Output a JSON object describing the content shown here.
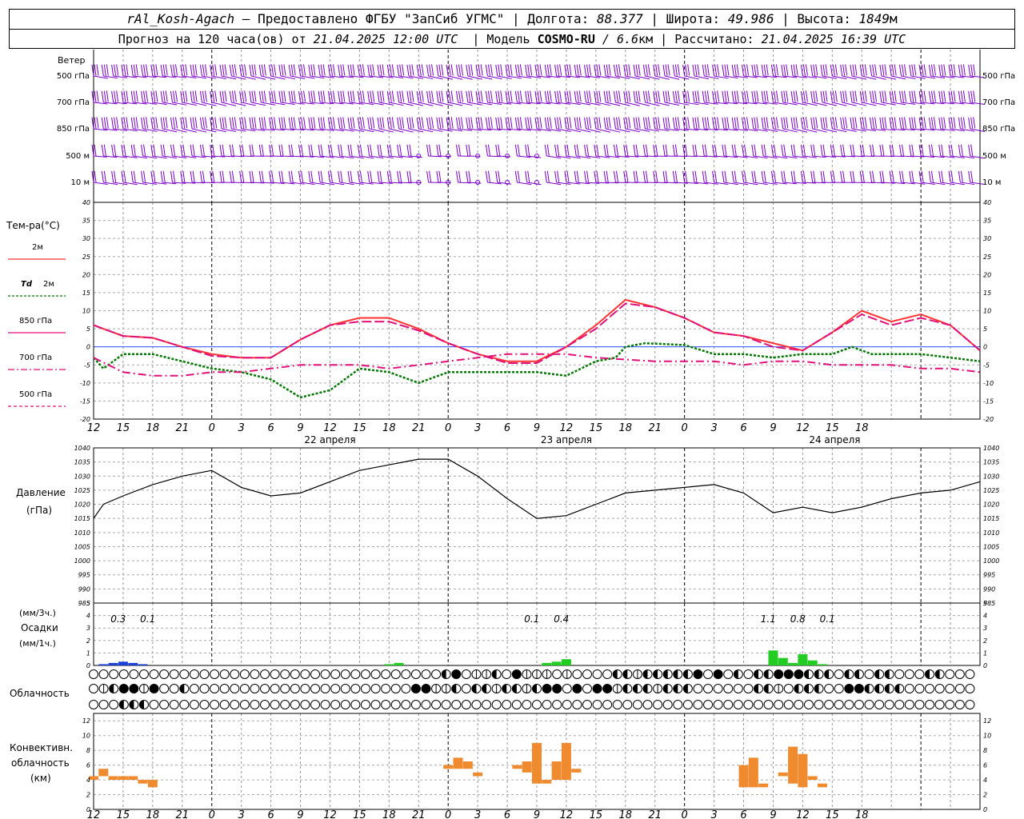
{
  "header": {
    "station": "rAl_Kosh-Agach",
    "dash": " – ",
    "provider": "Предоставлено ФГБУ \"ЗапСиб УГМС\"",
    "lon_label": "Долгота:",
    "lon": "88.377",
    "lat_label": "Широта:",
    "lat": "49.986",
    "alt_label": "Высота:",
    "alt": "1849",
    "alt_unit": "м",
    "forecast_label": "Прогноз на 120 часа(ов) от",
    "forecast_time": "21.04.2025 12:00 UTC",
    "model_label": "Модель",
    "model": "COSMO-RU",
    "model_res": "/ 6.6",
    "model_res_unit": "км",
    "calc_label": "Рассчитано:",
    "calc_time": "21.04.2025 16:39 UTC"
  },
  "wind_panel": {
    "title": "Ветер",
    "levels": [
      "500 гПа",
      "700 гПа",
      "850 гПа",
      "500 м",
      "10 м"
    ],
    "colors": {
      "barb": "#7a00c8"
    }
  },
  "temp_panel": {
    "title": "Тем-ра(°C)",
    "legend": [
      {
        "label": "2м",
        "color": "#ff3333",
        "dash": ""
      },
      {
        "label_it": "Td",
        "label": "2м",
        "color": "#007700",
        "dash": "3,2"
      },
      {
        "label": "850 гПа",
        "color": "#e0107a",
        "dash": ""
      },
      {
        "label": "700 гПа",
        "color": "#e0107a",
        "dash": "8,3,2,3"
      },
      {
        "label": "500 гПа",
        "color": "#e0107a",
        "dash": "4,3"
      }
    ]
  },
  "pressure_panel": {
    "title": "Давление",
    "unit": "(гПа)"
  },
  "precip_panel": {
    "unit3": "(мм/3ч.)",
    "title": "Осадки",
    "unit1": "(мм/1ч.)",
    "annotations": [
      {
        "hour": 2.5,
        "text": "0.3"
      },
      {
        "hour": 5.5,
        "text": "0.1"
      },
      {
        "hour": 44.5,
        "text": "0.1"
      },
      {
        "hour": 47.5,
        "text": "0.4"
      },
      {
        "hour": 68.5,
        "text": "1.1"
      },
      {
        "hour": 71.5,
        "text": "0.8"
      },
      {
        "hour": 74.5,
        "text": "0.1"
      }
    ]
  },
  "cloud_panel": {
    "title": "Облачность"
  },
  "conv_panel": {
    "title1": "Конвективн.",
    "title2": "облачность",
    "unit": "(км)"
  },
  "axis": {
    "hour_labels": [
      "12",
      "15",
      "18",
      "21",
      "0",
      "3",
      "6",
      "9",
      "12",
      "15",
      "18",
      "21",
      "0",
      "3",
      "6",
      "9",
      "12",
      "15",
      "18",
      "21",
      "0",
      "3",
      "6",
      "9",
      "12",
      "15",
      "18"
    ],
    "day_labels": [
      {
        "hour": 24,
        "text": "22 апреля"
      },
      {
        "hour": 48,
        "text": "23 апреля"
      },
      {
        "hour": 72,
        "text": "24 апреля"
      }
    ],
    "temp_ticks": [
      "40",
      "35",
      "30",
      "25",
      "20",
      "15",
      "10",
      "5",
      "0",
      "-5",
      "-10",
      "-15",
      "-20"
    ],
    "pres_ticks": [
      "1040",
      "1035",
      "1030",
      "1025",
      "1020",
      "1015",
      "1010",
      "1005",
      "1000",
      "995",
      "990",
      "985"
    ],
    "precip_ticks": [
      "5",
      "4",
      "3",
      "2",
      "1",
      "0"
    ],
    "conv_ticks": [
      "12",
      "10",
      "8",
      "6",
      "4",
      "2",
      "0"
    ]
  },
  "chart_data": {
    "type": "line",
    "x_unit": "hours from 21.04.2025 12:00 UTC",
    "temp_ylim": [
      -20,
      40
    ],
    "pres_ylim": [
      985,
      1040
    ],
    "precip_ylim": [
      0,
      5
    ],
    "conv_ylim": [
      0,
      13
    ],
    "series": [
      {
        "name": "2м",
        "color": "#ff3333",
        "x": [
          0,
          3,
          6,
          9,
          12,
          15,
          18,
          21,
          24,
          27,
          30,
          33,
          36,
          39,
          42,
          45,
          48,
          51,
          54,
          57,
          60,
          63,
          66,
          69,
          72,
          75,
          78,
          81,
          84,
          87,
          90
        ],
        "values": [
          6,
          3,
          2.5,
          0,
          -2,
          -3,
          -3,
          2,
          6,
          8,
          8,
          5,
          1,
          -2,
          -4,
          -4,
          0,
          6,
          13,
          11,
          8,
          4,
          3,
          1,
          -1,
          4,
          10,
          7,
          9,
          6,
          -1
        ]
      },
      {
        "name": "Td 2м",
        "color": "#007700",
        "x": [
          0,
          1,
          3,
          6,
          9,
          12,
          15,
          18,
          21,
          24,
          27,
          30,
          33,
          36,
          39,
          42,
          45,
          48,
          51,
          53,
          54,
          56,
          60,
          63,
          66,
          69,
          72,
          75,
          77,
          79,
          81,
          84,
          90
        ],
        "values": [
          -3,
          -6,
          -2,
          -2,
          -4,
          -6,
          -7,
          -9,
          -14,
          -12,
          -6,
          -7,
          -10,
          -7,
          -7,
          -7,
          -7,
          -8,
          -4,
          -3,
          0,
          1,
          0.5,
          -2,
          -2,
          -3,
          -2,
          -2,
          0,
          -2,
          -2,
          -2,
          -4
        ]
      },
      {
        "name": "850 гПа",
        "color": "#e0107a",
        "x": [
          0,
          3,
          6,
          9,
          12,
          15,
          18,
          21,
          24,
          27,
          30,
          33,
          36,
          39,
          42,
          45,
          48,
          51,
          54,
          57,
          60,
          63,
          66,
          69,
          72,
          75,
          78,
          81,
          84,
          87,
          90
        ],
        "values": [
          6,
          3,
          2.5,
          0,
          -2.5,
          -3,
          -3,
          2,
          6,
          7,
          7,
          4.5,
          1,
          -2,
          -4.5,
          -4.5,
          0,
          5,
          12,
          11,
          8,
          4,
          3,
          0,
          -1,
          4,
          9,
          6,
          8,
          6,
          -1
        ]
      },
      {
        "name": "700 гПа",
        "color": "#e0107a",
        "x": [
          0,
          3,
          6,
          9,
          12,
          15,
          18,
          21,
          24,
          27,
          30,
          33,
          36,
          39,
          42,
          45,
          48,
          51,
          54,
          57,
          60,
          63,
          66,
          69,
          72,
          75,
          78,
          81,
          84,
          87,
          90
        ],
        "values": [
          -3,
          -7,
          -8,
          -8,
          -7,
          -7,
          -6,
          -5,
          -5,
          -5,
          -6,
          -5,
          -4,
          -3,
          -2,
          -2,
          -2,
          -3,
          -3.5,
          -4,
          -4,
          -4,
          -5,
          -4,
          -4,
          -5,
          -5,
          -5,
          -6,
          -6,
          -7
        ]
      },
      {
        "name": "Давление",
        "color": "#000000",
        "x": [
          0,
          1,
          3,
          6,
          9,
          12,
          15,
          18,
          21,
          24,
          27,
          30,
          33,
          36,
          39,
          42,
          45,
          48,
          51,
          54,
          57,
          60,
          63,
          66,
          69,
          72,
          75,
          78,
          81,
          84,
          87,
          90
        ],
        "values": [
          1015,
          1020,
          1023,
          1027,
          1030,
          1032,
          1026,
          1023,
          1024,
          1028,
          1032,
          1034,
          1036,
          1036,
          1030,
          1022,
          1015,
          1016,
          1020,
          1024,
          1025,
          1026,
          1027,
          1024,
          1017,
          1019,
          1017,
          1019,
          1022,
          1024,
          1025,
          1028
        ]
      }
    ],
    "precip_hours": [
      1,
      2,
      3,
      4,
      5,
      30,
      31,
      46,
      47,
      48,
      69,
      70,
      71,
      72,
      73,
      74
    ],
    "precip_mm": [
      0.1,
      0.2,
      0.3,
      0.2,
      0.1,
      0.1,
      0.2,
      0.2,
      0.3,
      0.5,
      1.2,
      0.6,
      0.2,
      0.9,
      0.4,
      0.1
    ],
    "precip_colors": [
      "#1a3fd6",
      "#1a3fd6",
      "#1a3fd6",
      "#1a3fd6",
      "#1a3fd6",
      "#22cc22",
      "#22cc22",
      "#22cc22",
      "#22cc22",
      "#22cc22",
      "#22cc22",
      "#22cc22",
      "#22cc22",
      "#22cc22",
      "#22cc22",
      "#22cc22"
    ],
    "cloud_high": "0000000000000000000000000000000000023011203111010000221222223030202233322202202200022000",
    "cloud_mid": "0123313002000000000000000000000033112022122123303033122212220000002210222003322220000000",
    "cloud_low": "0002220000000000000000000000000000000000000000000000000000000000000000000000000000000000",
    "conv_bars": [
      {
        "x": 0,
        "top": 4.5,
        "bottom": 4
      },
      {
        "x": 1,
        "top": 5.5,
        "bottom": 4.5
      },
      {
        "x": 2,
        "top": 4.5,
        "bottom": 4
      },
      {
        "x": 3,
        "top": 4.5,
        "bottom": 4
      },
      {
        "x": 4,
        "top": 4.5,
        "bottom": 4
      },
      {
        "x": 5,
        "top": 4,
        "bottom": 3.5
      },
      {
        "x": 6,
        "top": 4,
        "bottom": 3
      },
      {
        "x": 36,
        "top": 6,
        "bottom": 5.5
      },
      {
        "x": 37,
        "top": 7,
        "bottom": 5.5
      },
      {
        "x": 38,
        "top": 6.5,
        "bottom": 5.5
      },
      {
        "x": 39,
        "top": 5,
        "bottom": 4.5
      },
      {
        "x": 43,
        "top": 6,
        "bottom": 5.5
      },
      {
        "x": 44,
        "top": 6.5,
        "bottom": 5
      },
      {
        "x": 45,
        "top": 9,
        "bottom": 3.5
      },
      {
        "x": 46,
        "top": 4,
        "bottom": 3.5
      },
      {
        "x": 47,
        "top": 6.5,
        "bottom": 4
      },
      {
        "x": 48,
        "top": 9,
        "bottom": 4
      },
      {
        "x": 49,
        "top": 5.5,
        "bottom": 5
      },
      {
        "x": 66,
        "top": 6,
        "bottom": 3
      },
      {
        "x": 67,
        "top": 7,
        "bottom": 3
      },
      {
        "x": 68,
        "top": 3.5,
        "bottom": 3
      },
      {
        "x": 70,
        "top": 5,
        "bottom": 4.5
      },
      {
        "x": 71,
        "top": 8.5,
        "bottom": 3.5
      },
      {
        "x": 72,
        "top": 7.5,
        "bottom": 3
      },
      {
        "x": 73,
        "top": 4.5,
        "bottom": 4
      },
      {
        "x": 74,
        "top": 3.5,
        "bottom": 3
      }
    ],
    "conv_color": "#f08a2e",
    "grid": true
  }
}
